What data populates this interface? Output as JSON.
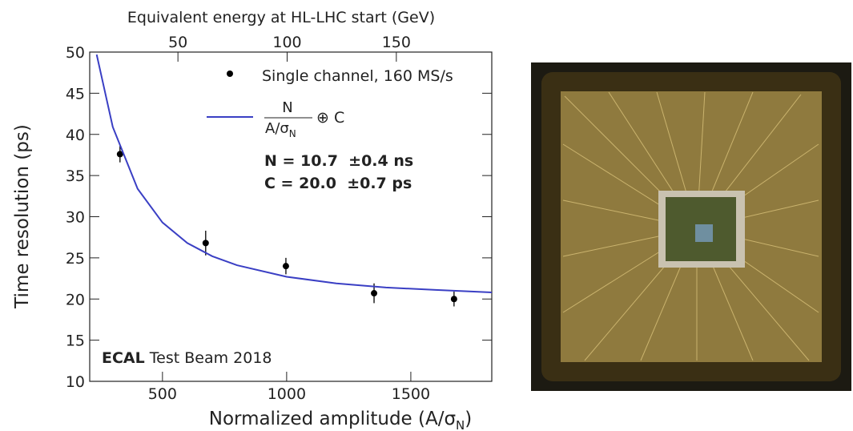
{
  "chart_data": {
    "type": "scatter",
    "x_label": {
      "text": "Normalized amplitude (A/σ",
      "sub": "N",
      "tail": ")"
    },
    "x2_label": "Equivalent energy at HL-LHC start (GeV)",
    "y_label": "Time resolution (ps)",
    "xlim": [
      207,
      1826
    ],
    "xticks": [
      500,
      1000,
      1500
    ],
    "x2lim": [
      9.6,
      193.7
    ],
    "x2ticks": [
      50,
      100,
      150
    ],
    "ylim": [
      10,
      50
    ],
    "yticks": [
      10,
      15,
      20,
      25,
      30,
      35,
      40,
      45,
      50
    ],
    "series": [
      {
        "name": "Single channel, 160 MS/s",
        "color": "#000000",
        "x": [
          329,
          674,
          997,
          1352,
          1674
        ],
        "values": [
          37.6,
          26.8,
          24.0,
          20.7,
          20.0
        ],
        "errors": [
          1.0,
          1.5,
          1.0,
          1.2,
          0.9
        ]
      },
      {
        "name": {
          "num": "N",
          "den": "A/σ",
          "den_sub": "N",
          "tail": "⊕ C"
        },
        "color": "#3a3fc4",
        "x": [
          235,
          300,
          400,
          500,
          600,
          700,
          800,
          1000,
          1200,
          1400,
          1600,
          1826
        ],
        "values": [
          49.7,
          40.9,
          33.4,
          29.3,
          26.8,
          25.2,
          24.1,
          22.7,
          21.9,
          21.4,
          21.1,
          20.8
        ]
      }
    ],
    "annotations": [
      "N = 10.7  ±0.4 ns",
      "C = 20.0  ±0.7 ps"
    ],
    "experiment": "ECAL",
    "experiment_note": "Test Beam 2018"
  }
}
